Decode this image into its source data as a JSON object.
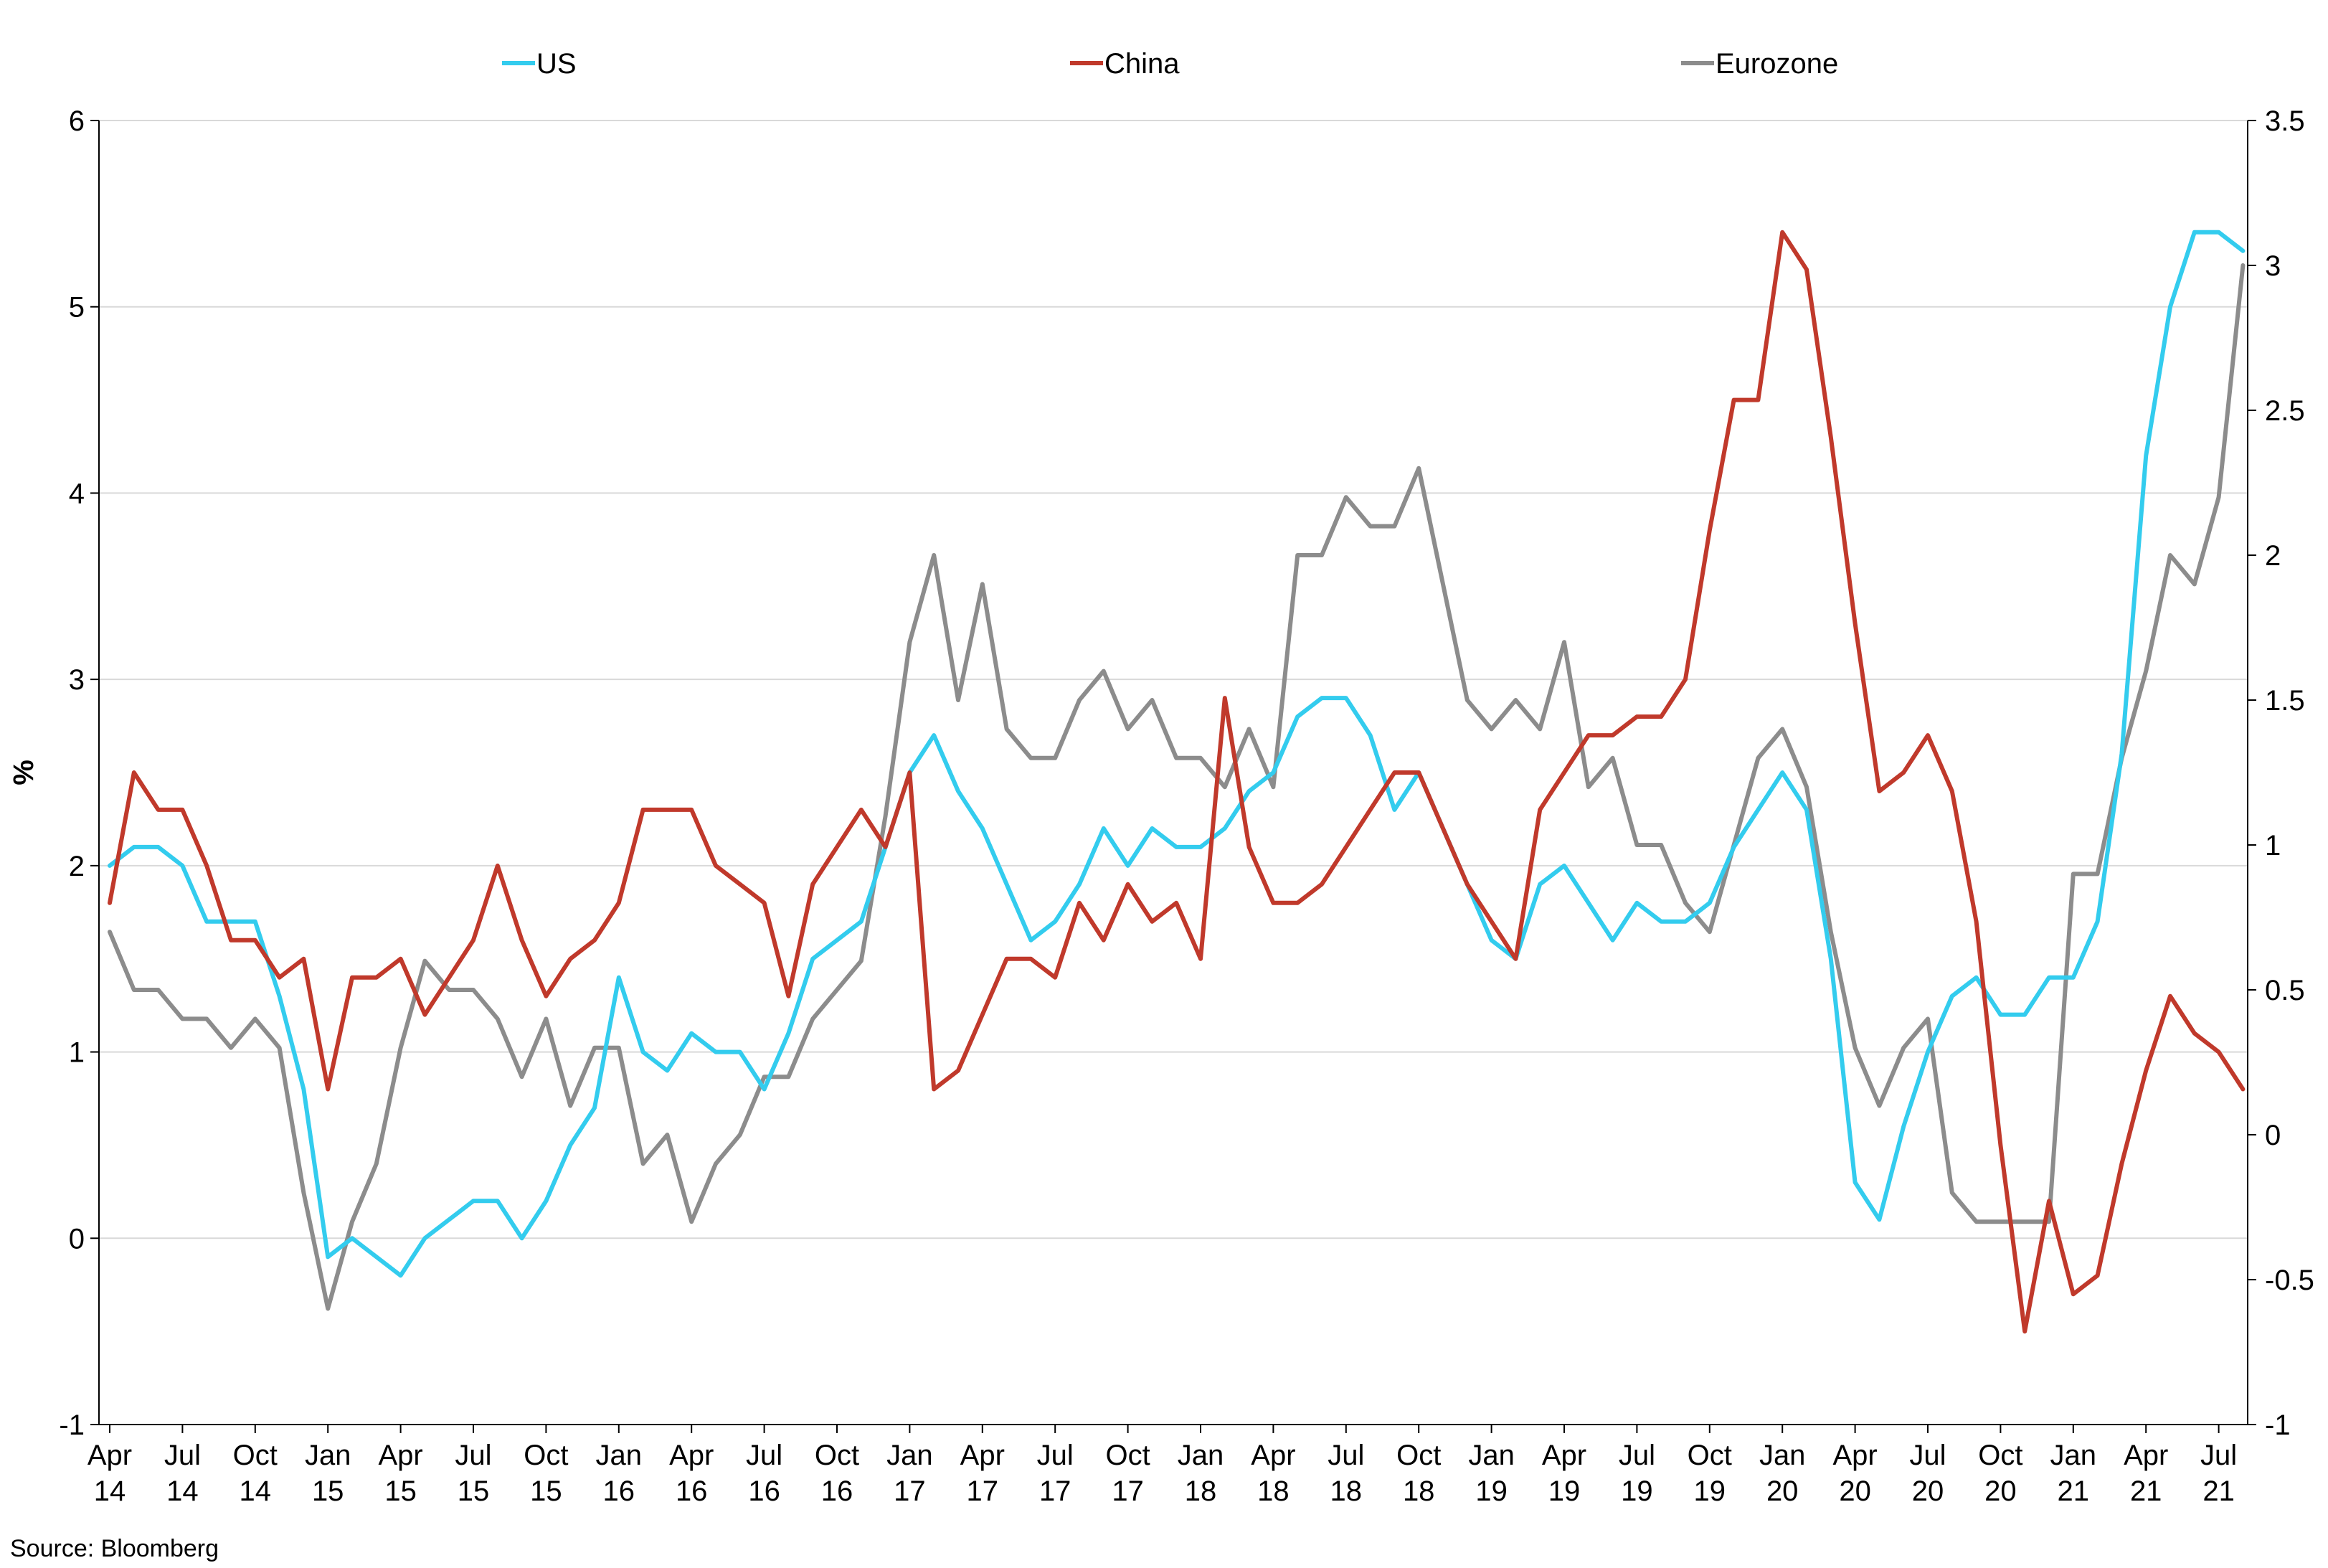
{
  "chart_data": {
    "type": "line",
    "title": "",
    "ylabel": "%",
    "ylim": [
      -1,
      6
    ],
    "y2lim": [
      -1,
      3.5
    ],
    "grid": true,
    "legend_position": "top",
    "source": "Source: Bloomberg",
    "x_tick_labels": [
      [
        "Apr",
        "14"
      ],
      [
        "Jul",
        "14"
      ],
      [
        "Oct",
        "14"
      ],
      [
        "Jan",
        "15"
      ],
      [
        "Apr",
        "15"
      ],
      [
        "Jul",
        "15"
      ],
      [
        "Oct",
        "15"
      ],
      [
        "Jan",
        "16"
      ],
      [
        "Apr",
        "16"
      ],
      [
        "Jul",
        "16"
      ],
      [
        "Oct",
        "16"
      ],
      [
        "Jan",
        "17"
      ],
      [
        "Apr",
        "17"
      ],
      [
        "Jul",
        "17"
      ],
      [
        "Oct",
        "17"
      ],
      [
        "Jan",
        "18"
      ],
      [
        "Apr",
        "18"
      ],
      [
        "Jul",
        "18"
      ],
      [
        "Oct",
        "18"
      ],
      [
        "Jan",
        "19"
      ],
      [
        "Apr",
        "19"
      ],
      [
        "Jul",
        "19"
      ],
      [
        "Oct",
        "19"
      ],
      [
        "Jan",
        "20"
      ],
      [
        "Apr",
        "20"
      ],
      [
        "Jul",
        "20"
      ],
      [
        "Oct",
        "20"
      ],
      [
        "Jan",
        "21"
      ],
      [
        "Apr",
        "21"
      ],
      [
        "Jul",
        "21"
      ]
    ],
    "y_ticks": [
      -1,
      0,
      1,
      2,
      3,
      4,
      5,
      6
    ],
    "y2_ticks": [
      "-1",
      "-0.5",
      "0",
      "0.5",
      "1",
      "1.5",
      "2",
      "2.5",
      "3",
      "3.5"
    ],
    "x_start": "2014-04",
    "series": [
      {
        "name": "US",
        "axis": "left",
        "color": "#33CCEE",
        "values": [
          2.0,
          2.1,
          2.1,
          2.0,
          1.7,
          1.7,
          1.7,
          1.3,
          0.8,
          -0.1,
          0.0,
          -0.1,
          -0.2,
          0.0,
          0.1,
          0.2,
          0.2,
          0.0,
          0.2,
          0.5,
          0.7,
          1.4,
          1.0,
          0.9,
          1.1,
          1.0,
          1.0,
          0.8,
          1.1,
          1.5,
          1.6,
          1.7,
          2.1,
          2.5,
          2.7,
          2.4,
          2.2,
          1.9,
          1.6,
          1.7,
          1.9,
          2.2,
          2.0,
          2.2,
          2.1,
          2.1,
          2.2,
          2.4,
          2.5,
          2.8,
          2.9,
          2.9,
          2.7,
          2.3,
          2.5,
          2.2,
          1.9,
          1.6,
          1.5,
          1.9,
          2.0,
          1.8,
          1.6,
          1.8,
          1.7,
          1.7,
          1.8,
          2.1,
          2.3,
          2.5,
          2.3,
          1.5,
          0.3,
          0.1,
          0.6,
          1.0,
          1.3,
          1.4,
          1.2,
          1.2,
          1.4,
          1.4,
          1.7,
          2.6,
          4.2,
          5.0,
          5.4,
          5.4,
          5.3
        ]
      },
      {
        "name": "China",
        "axis": "left",
        "color": "#C0392B",
        "values": [
          1.8,
          2.5,
          2.3,
          2.3,
          2.0,
          1.6,
          1.6,
          1.4,
          1.5,
          0.8,
          1.4,
          1.4,
          1.5,
          1.2,
          1.4,
          1.6,
          2.0,
          1.6,
          1.3,
          1.5,
          1.6,
          1.8,
          2.3,
          2.3,
          2.3,
          2.0,
          1.9,
          1.8,
          1.3,
          1.9,
          2.1,
          2.3,
          2.1,
          2.5,
          0.8,
          0.9,
          1.2,
          1.5,
          1.5,
          1.4,
          1.8,
          1.6,
          1.9,
          1.7,
          1.8,
          1.5,
          2.9,
          2.1,
          1.8,
          1.8,
          1.9,
          2.1,
          2.3,
          2.5,
          2.5,
          2.2,
          1.9,
          1.7,
          1.5,
          2.3,
          2.5,
          2.7,
          2.7,
          2.8,
          2.8,
          3.0,
          3.8,
          4.5,
          4.5,
          5.4,
          5.2,
          4.3,
          3.3,
          2.4,
          2.5,
          2.7,
          2.4,
          1.7,
          0.5,
          -0.5,
          0.2,
          -0.3,
          -0.2,
          0.4,
          0.9,
          1.3,
          1.1,
          1.0,
          0.8
        ]
      },
      {
        "name": "Eurozone",
        "axis": "right",
        "color": "#8C8C8C",
        "values": [
          0.7,
          0.5,
          0.5,
          0.4,
          0.4,
          0.3,
          0.4,
          0.3,
          -0.2,
          -0.6,
          -0.3,
          -0.1,
          0.3,
          0.6,
          0.5,
          0.5,
          0.4,
          0.2,
          0.4,
          0.1,
          0.3,
          0.3,
          -0.1,
          0.0,
          -0.3,
          -0.1,
          0.0,
          0.2,
          0.2,
          0.4,
          0.5,
          0.6,
          1.1,
          1.7,
          2.0,
          1.5,
          1.9,
          1.4,
          1.3,
          1.3,
          1.5,
          1.6,
          1.4,
          1.5,
          1.3,
          1.3,
          1.2,
          1.4,
          1.2,
          2.0,
          2.0,
          2.2,
          2.1,
          2.1,
          2.3,
          1.9,
          1.5,
          1.4,
          1.5,
          1.4,
          1.7,
          1.2,
          1.3,
          1.0,
          1.0,
          0.8,
          0.7,
          1.0,
          1.3,
          1.4,
          1.2,
          0.7,
          0.3,
          0.1,
          0.3,
          0.4,
          -0.2,
          -0.3,
          -0.3,
          -0.3,
          -0.3,
          0.9,
          0.9,
          1.3,
          1.6,
          2.0,
          1.9,
          2.2,
          3.0
        ]
      }
    ]
  }
}
